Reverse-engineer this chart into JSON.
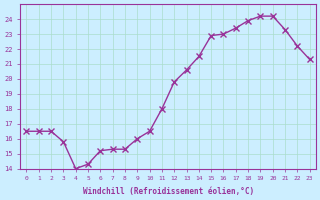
{
  "x": [
    0,
    1,
    2,
    3,
    4,
    5,
    6,
    7,
    8,
    9,
    10,
    11,
    12,
    13,
    14,
    15,
    16,
    17,
    18,
    19,
    20,
    21,
    22,
    23
  ],
  "y": [
    16.5,
    16.5,
    16.5,
    15.8,
    14.0,
    14.3,
    15.2,
    15.3,
    15.3,
    16.0,
    16.5,
    18.0,
    19.8,
    20.6,
    21.5,
    22.9,
    23.0,
    23.4,
    23.9,
    24.2,
    24.2,
    23.3,
    22.2,
    21.3
  ],
  "line_color": "#993399",
  "marker": "x",
  "marker_size": 4,
  "bg_color": "#cceeff",
  "grid_color": "#aaddcc",
  "xlabel": "Windchill (Refroidissement éolien,°C)",
  "ylabel": "",
  "xlim": [
    -0.5,
    23.5
  ],
  "ylim": [
    14,
    25
  ],
  "yticks": [
    14,
    15,
    16,
    17,
    18,
    19,
    20,
    21,
    22,
    23,
    24
  ],
  "xticks": [
    0,
    1,
    2,
    3,
    4,
    5,
    6,
    7,
    8,
    9,
    10,
    11,
    12,
    13,
    14,
    15,
    16,
    17,
    18,
    19,
    20,
    21,
    22,
    23
  ]
}
